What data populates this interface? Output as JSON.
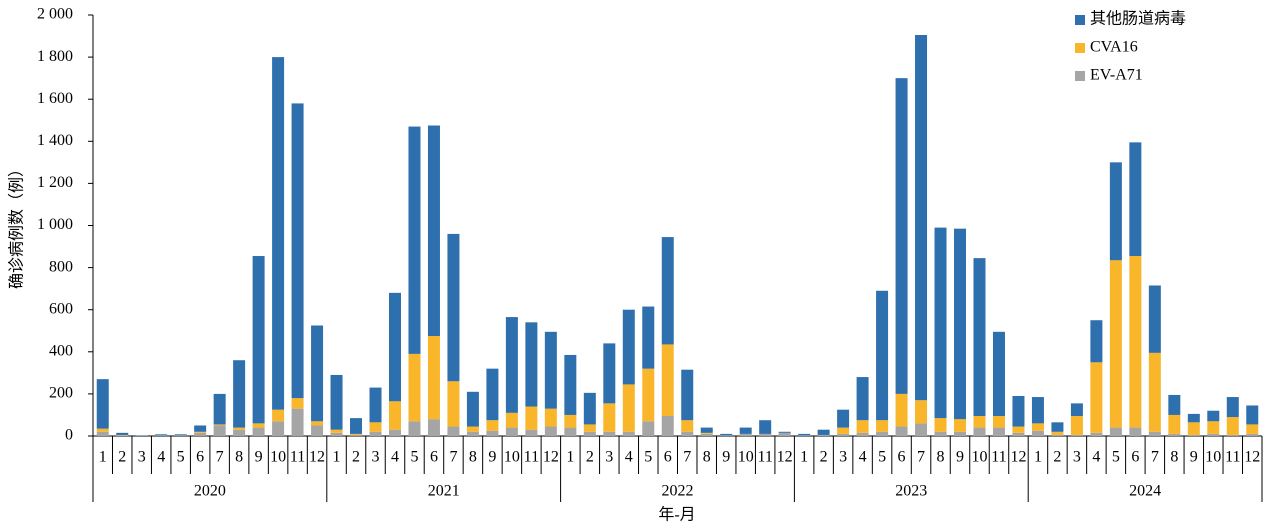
{
  "chart_data": {
    "type": "stacked_bar",
    "y_label": "确诊病例数（例）",
    "x_label": "年-月",
    "categories": [
      "1",
      "2",
      "3",
      "4",
      "5",
      "6",
      "7",
      "8",
      "9",
      "10",
      "11",
      "12",
      "1",
      "2",
      "3",
      "4",
      "5",
      "6",
      "7",
      "8",
      "9",
      "10",
      "11",
      "12",
      "1",
      "2",
      "3",
      "4",
      "5",
      "6",
      "7",
      "8",
      "9",
      "10",
      "11",
      "12",
      "1",
      "2",
      "3",
      "4",
      "5",
      "6",
      "7",
      "8",
      "9",
      "10",
      "11",
      "12",
      "1",
      "2",
      "3",
      "4",
      "5",
      "6",
      "7",
      "8",
      "9",
      "10",
      "11",
      "12"
    ],
    "years": [
      "2020",
      "2021",
      "2022",
      "2023",
      "2024"
    ],
    "series": [
      {
        "name": "其他肠道病毒",
        "color": "#2e6fae",
        "values": [
          235,
          10,
          2,
          5,
          5,
          30,
          145,
          320,
          795,
          1675,
          1400,
          455,
          260,
          75,
          165,
          515,
          1080,
          1000,
          700,
          165,
          245,
          455,
          400,
          365,
          285,
          150,
          285,
          355,
          295,
          510,
          240,
          25,
          7,
          30,
          65,
          5,
          7,
          25,
          85,
          205,
          615,
          1500,
          1735,
          905,
          905,
          750,
          400,
          145,
          125,
          45,
          60,
          200,
          465,
          540,
          320,
          95,
          40,
          50,
          95,
          90
        ]
      },
      {
        "name": "CVA16",
        "color": "#f9b62b",
        "values": [
          15,
          2,
          0,
          0,
          0,
          5,
          5,
          10,
          20,
          55,
          50,
          20,
          15,
          5,
          45,
          135,
          320,
          395,
          215,
          25,
          50,
          70,
          110,
          85,
          60,
          35,
          135,
          225,
          250,
          340,
          55,
          5,
          0,
          0,
          0,
          0,
          0,
          0,
          30,
          60,
          55,
          155,
          110,
          65,
          60,
          55,
          55,
          30,
          35,
          15,
          90,
          335,
          795,
          815,
          375,
          90,
          60,
          60,
          85,
          45
        ]
      },
      {
        "name": "EV-A71",
        "color": "#a5a5a5",
        "values": [
          20,
          3,
          0,
          3,
          3,
          15,
          50,
          30,
          40,
          70,
          130,
          50,
          15,
          5,
          20,
          30,
          70,
          80,
          45,
          20,
          25,
          40,
          30,
          45,
          40,
          20,
          20,
          20,
          70,
          95,
          20,
          10,
          3,
          10,
          10,
          15,
          3,
          5,
          10,
          15,
          20,
          45,
          60,
          20,
          20,
          40,
          40,
          15,
          25,
          5,
          5,
          15,
          40,
          40,
          20,
          10,
          5,
          10,
          5,
          10
        ]
      }
    ],
    "ylim": [
      0,
      2000
    ],
    "yticks": [
      0,
      200,
      400,
      600,
      800,
      {
        "value": 1000,
        "label": "1 000"
      },
      {
        "value": 1200,
        "label": "1 200"
      },
      {
        "value": 1400,
        "label": "1 400"
      },
      {
        "value": 1600,
        "label": "1 600"
      },
      {
        "value": 1800,
        "label": "1 800"
      },
      {
        "value": 2000,
        "label": "2 000"
      }
    ],
    "legend": "top-right",
    "grid": false
  }
}
